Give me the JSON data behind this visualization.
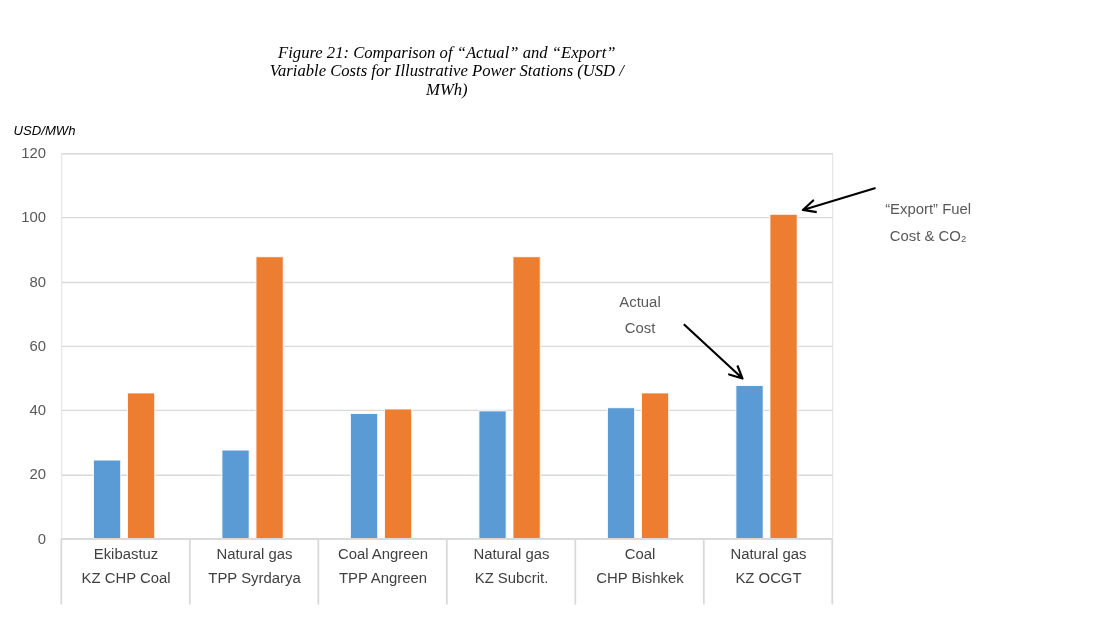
{
  "chart_data": {
    "type": "bar",
    "title": "Figure 21:  Comparison of “Actual” and “Export” Variable Costs for Illustrative Power Stations (USD / MWh)",
    "ylabel": "USD/MWh",
    "categories": [
      "Ekibastuz\nKZ CHP Coal",
      "Natural gas\nTPP Syrdarya",
      "Coal Angreen\nTPP Angreen",
      "Natural gas\nKZ Subcrit.",
      "Coal\nCHP Bishkek",
      "Natural gas\nKZ OCGT"
    ],
    "series": [
      {
        "color": "#5b9bd5",
        "values": [
          24.5,
          27.6,
          39.0,
          39.8,
          40.8,
          47.7
        ]
      },
      {
        "color": "#ed7d31",
        "values": [
          45.4,
          87.8,
          40.4,
          87.8,
          45.4,
          101.0
        ]
      }
    ],
    "ylim": [
      0,
      120
    ],
    "yticks": [
      0,
      20,
      40,
      60,
      80,
      100,
      120
    ],
    "grid": "y",
    "annotations": [
      "Actual\nCost",
      "“Export” Fuel\nCost & CO₂"
    ]
  }
}
